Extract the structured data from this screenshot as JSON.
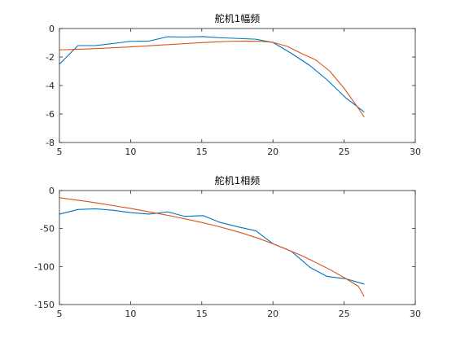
{
  "chart_data": [
    {
      "type": "line",
      "title": "舵机1幅频",
      "xlabel": "",
      "ylabel": "",
      "xlim": [
        5,
        30
      ],
      "ylim": [
        -8,
        0
      ],
      "xticks": [
        5,
        10,
        15,
        20,
        25,
        30
      ],
      "yticks": [
        0,
        -2,
        -4,
        -6,
        -8
      ],
      "xtick_labels": [
        "5",
        "10",
        "15",
        "20",
        "25",
        "30"
      ],
      "ytick_labels": [
        "0",
        "-2",
        "-4",
        "-6",
        "-8"
      ],
      "grid": false,
      "series": [
        {
          "color": "#0072BD",
          "x": [
            5,
            6.3,
            7.5,
            8.8,
            10,
            11.3,
            12.6,
            13.8,
            15.1,
            16.3,
            17.6,
            18.8,
            20,
            21.3,
            22.6,
            23.8,
            25.1,
            26.4
          ],
          "y": [
            -2.5,
            -1.2,
            -1.2,
            -1.05,
            -0.9,
            -0.88,
            -0.58,
            -0.6,
            -0.57,
            -0.65,
            -0.7,
            -0.75,
            -0.98,
            -1.75,
            -2.6,
            -3.6,
            -4.85,
            -5.85
          ]
        },
        {
          "color": "#D95319",
          "x": [
            5,
            6,
            7,
            8,
            9,
            10,
            11,
            12,
            13,
            14,
            15,
            16,
            17,
            18,
            19,
            20,
            21,
            22,
            23,
            24,
            25,
            26,
            26.4
          ],
          "y": [
            -1.5,
            -1.47,
            -1.43,
            -1.39,
            -1.34,
            -1.29,
            -1.23,
            -1.17,
            -1.11,
            -1.05,
            -0.99,
            -0.94,
            -0.9,
            -0.88,
            -0.89,
            -0.97,
            -1.25,
            -1.75,
            -2.2,
            -3.0,
            -4.2,
            -5.6,
            -6.2
          ]
        }
      ]
    },
    {
      "type": "line",
      "title": "舵机1相频",
      "xlabel": "",
      "ylabel": "",
      "xlim": [
        5,
        30
      ],
      "ylim": [
        -150,
        0
      ],
      "xticks": [
        5,
        10,
        15,
        20,
        25,
        30
      ],
      "yticks": [
        0,
        -50,
        -100,
        -150
      ],
      "xtick_labels": [
        "5",
        "10",
        "15",
        "20",
        "25",
        "30"
      ],
      "ytick_labels": [
        "0",
        "-50",
        "-100",
        "-150"
      ],
      "grid": false,
      "series": [
        {
          "color": "#0072BD",
          "x": [
            5,
            6.3,
            7.5,
            8.8,
            10,
            11.3,
            12.6,
            13.8,
            15.1,
            16.3,
            17.6,
            18.8,
            20,
            21.3,
            22.6,
            23.8,
            25.1,
            26.4
          ],
          "y": [
            -31,
            -25,
            -24,
            -26,
            -29,
            -31,
            -28,
            -34,
            -33,
            -42,
            -48,
            -53,
            -70,
            -80,
            -101,
            -113,
            -116,
            -123
          ]
        },
        {
          "color": "#D95319",
          "x": [
            5,
            6,
            7,
            8,
            9,
            10,
            11,
            12,
            13,
            14,
            15,
            16,
            17,
            18,
            19,
            20,
            21,
            22,
            23,
            24,
            25,
            26,
            26.4
          ],
          "y": [
            -9.5,
            -12,
            -14.5,
            -17.5,
            -20.5,
            -23.5,
            -27,
            -30.5,
            -34,
            -38,
            -42,
            -46.5,
            -51.5,
            -57,
            -63,
            -70,
            -77.5,
            -85.5,
            -94.5,
            -104,
            -114.5,
            -126,
            -139
          ]
        }
      ]
    }
  ]
}
